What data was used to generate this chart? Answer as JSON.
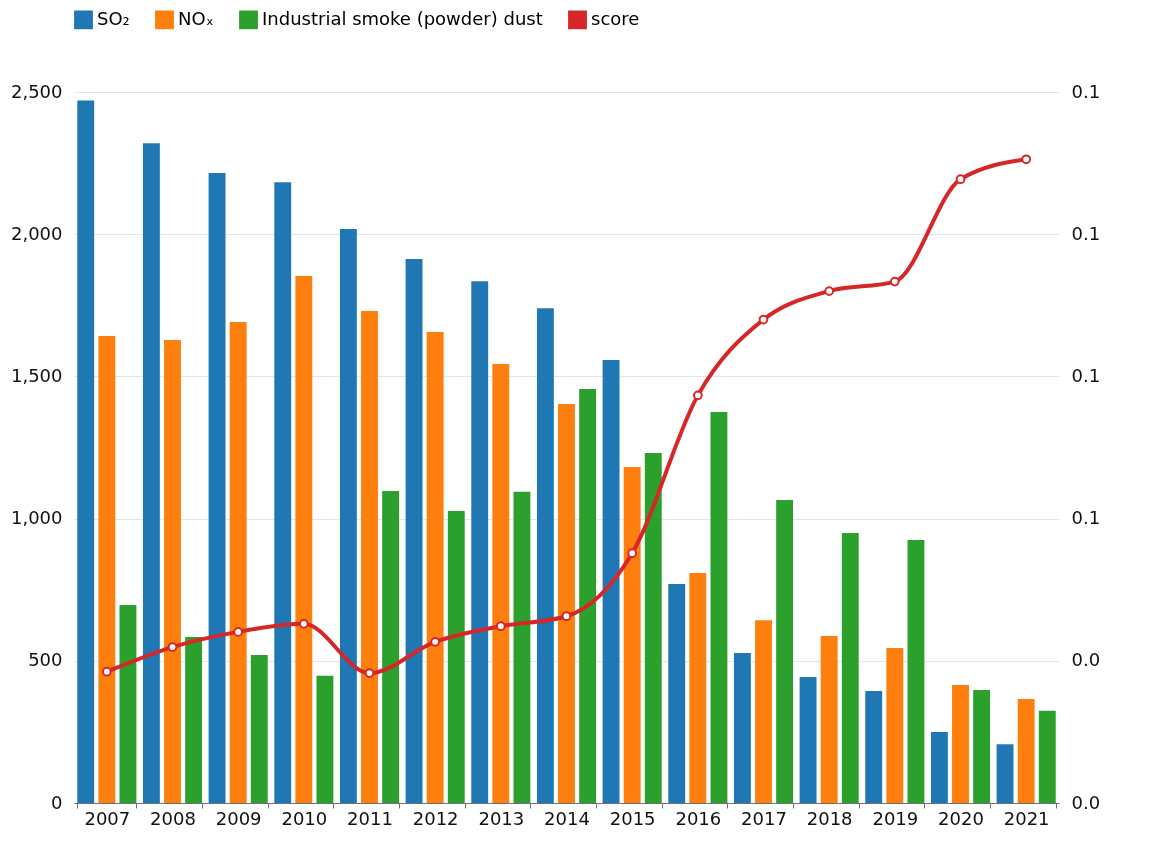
{
  "chart_data": {
    "type": "bar",
    "categories": [
      "2007",
      "2008",
      "2009",
      "2010",
      "2011",
      "2012",
      "2013",
      "2014",
      "2015",
      "2016",
      "2017",
      "2018",
      "2019",
      "2020",
      "2021"
    ],
    "series": [
      {
        "name": "SO₂",
        "color": "#1f77b4",
        "values": [
          2470,
          2320,
          2215,
          2183,
          2018,
          1913,
          1835,
          1740,
          1558,
          770,
          527,
          443,
          394,
          250,
          207
        ]
      },
      {
        "name": "NOₓ",
        "color": "#ff7f0e",
        "values": [
          1642,
          1628,
          1691,
          1853,
          1730,
          1656,
          1544,
          1403,
          1181,
          809,
          643,
          587,
          545,
          415,
          366
        ]
      },
      {
        "name": "Industrial smoke (powder) dust",
        "color": "#2ca02c",
        "values": [
          696,
          584,
          520,
          447,
          1097,
          1027,
          1094,
          1456,
          1231,
          1375,
          1065,
          949,
          925,
          397,
          324
        ]
      },
      {
        "name": "score",
        "type": "line",
        "axis": "y2",
        "color": "#d62728",
        "values": [
          0.0277,
          0.0329,
          0.0361,
          0.0378,
          0.0274,
          0.034,
          0.0373,
          0.0394,
          0.0527,
          0.086,
          0.102,
          0.108,
          0.11,
          0.1316,
          0.1358
        ]
      }
    ],
    "ylim": [
      0,
      2500
    ],
    "yticks": [
      0,
      500,
      {
        "value": 1000,
        "label": "1,000"
      },
      {
        "value": 1500,
        "label": "1,500"
      },
      {
        "value": 2000,
        "label": "2,000"
      },
      {
        "value": 2500,
        "label": "2,500"
      }
    ],
    "y2lim": [
      0,
      0.15
    ],
    "y2ticks": [
      {
        "value": 0,
        "label": "0.0"
      },
      {
        "value": 0.03,
        "label": "0.0"
      },
      {
        "value": 0.06,
        "label": "0.1"
      },
      {
        "value": 0.09,
        "label": "0.1"
      },
      {
        "value": 0.12,
        "label": "0.1"
      },
      {
        "value": 0.15,
        "label": "0.1"
      }
    ],
    "grid": "y",
    "legend": "top left",
    "marker": "circle",
    "line_style": "solid"
  }
}
